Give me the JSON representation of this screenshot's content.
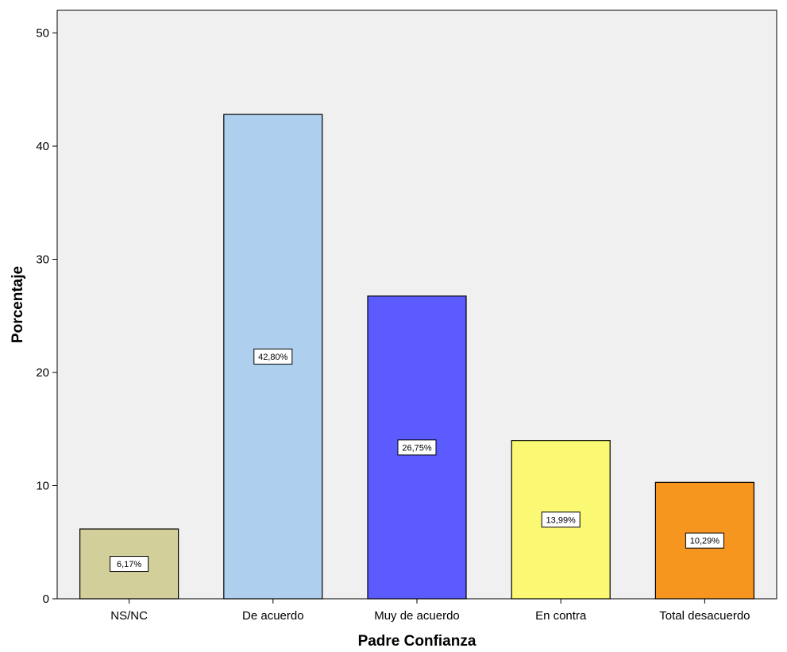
{
  "chart_data": {
    "type": "bar",
    "categories": [
      "NS/NC",
      "De acuerdo",
      "Muy de acuerdo",
      "En contra",
      "Total desacuerdo"
    ],
    "values": [
      6.17,
      42.8,
      26.75,
      13.99,
      10.29
    ],
    "data_labels": [
      "6,17%",
      "42,80%",
      "26,75%",
      "13,99%",
      "10,29%"
    ],
    "colors": [
      "#d3cf9b",
      "#aecfee",
      "#5b5bff",
      "#fbf874",
      "#f7961e"
    ],
    "plot_background": "#f0f0f0",
    "xlabel": "Padre Confianza",
    "ylabel": "Porcentaje",
    "ylim": [
      0,
      52
    ],
    "yticks": [
      0,
      10,
      20,
      30,
      40,
      50
    ],
    "grid": false
  }
}
